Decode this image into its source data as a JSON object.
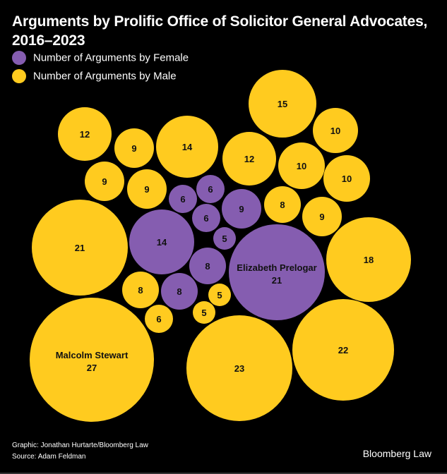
{
  "title": "Arguments by Prolific Office of Solicitor General Advocates, 2016–2023",
  "legend": [
    {
      "label": "Number of Arguments by Female",
      "color": "#855db0"
    },
    {
      "label": "Number of Arguments by Male",
      "color": "#ffcb1f"
    }
  ],
  "footer": {
    "graphic": "Graphic: Jonathan Hurtarte/Bloomberg Law",
    "source": "Source: Adam Feldman",
    "brand": "Bloomberg Law"
  },
  "chart_data": {
    "type": "bubble",
    "title": "Arguments by Prolific Office of Solicitor General Advocates, 2016–2023",
    "series": [
      {
        "name": "Number of Arguments by Female",
        "color": "#855db0"
      },
      {
        "name": "Number of Arguments by Male",
        "color": "#ffcb1f"
      }
    ],
    "bubbles": [
      {
        "value": 15,
        "gender": "Male"
      },
      {
        "value": 10,
        "gender": "Male"
      },
      {
        "value": 12,
        "gender": "Male"
      },
      {
        "value": 9,
        "gender": "Male"
      },
      {
        "value": 14,
        "gender": "Male"
      },
      {
        "value": 12,
        "gender": "Male"
      },
      {
        "value": 10,
        "gender": "Male"
      },
      {
        "value": 10,
        "gender": "Male"
      },
      {
        "value": 9,
        "gender": "Male"
      },
      {
        "value": 9,
        "gender": "Male"
      },
      {
        "value": 6,
        "gender": "Female"
      },
      {
        "value": 6,
        "gender": "Female"
      },
      {
        "value": 9,
        "gender": "Female"
      },
      {
        "value": 8,
        "gender": "Male"
      },
      {
        "value": 9,
        "gender": "Male"
      },
      {
        "value": 6,
        "gender": "Female"
      },
      {
        "value": 5,
        "gender": "Female"
      },
      {
        "value": 21,
        "gender": "Male"
      },
      {
        "value": 14,
        "gender": "Female"
      },
      {
        "value": 8,
        "gender": "Female"
      },
      {
        "value": 21,
        "gender": "Female",
        "name": "Elizabeth Prelogar"
      },
      {
        "value": 18,
        "gender": "Male"
      },
      {
        "value": 8,
        "gender": "Male"
      },
      {
        "value": 8,
        "gender": "Female"
      },
      {
        "value": 5,
        "gender": "Male"
      },
      {
        "value": 5,
        "gender": "Male"
      },
      {
        "value": 6,
        "gender": "Male"
      },
      {
        "value": 27,
        "gender": "Male",
        "name": "Malcolm Stewart"
      },
      {
        "value": 23,
        "gender": "Male"
      },
      {
        "value": 22,
        "gender": "Male"
      }
    ]
  }
}
